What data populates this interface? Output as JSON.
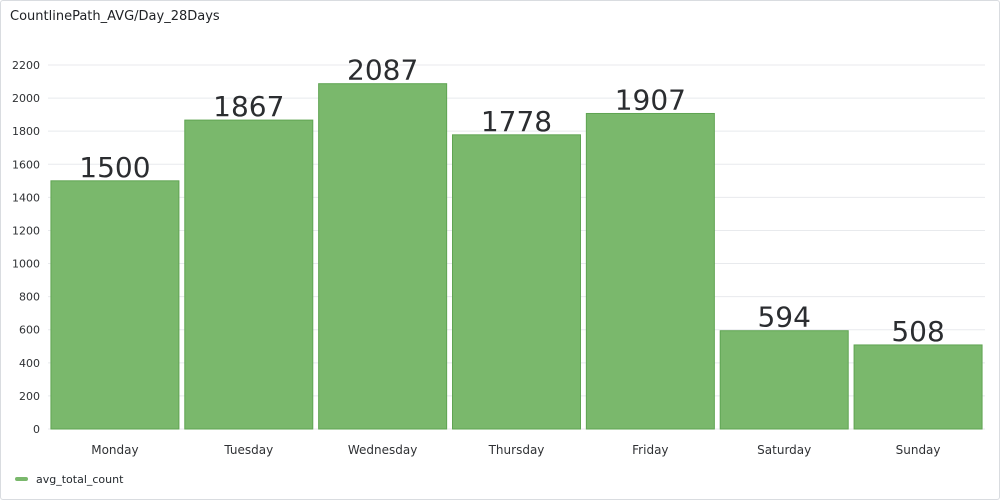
{
  "panel": {
    "title": "CountlinePath_AVG/Day_28Days"
  },
  "colors": {
    "bar_fill": "#7ab86c",
    "bar_stroke": "#5fa452",
    "grid": "#e8eaed",
    "axis_text": "#2f3134",
    "value_label": "#2b2d30"
  },
  "chart_data": {
    "type": "bar",
    "title": "CountlinePath_AVG/Day_28Days",
    "xlabel": "",
    "ylabel": "",
    "categories": [
      "Monday",
      "Tuesday",
      "Wednesday",
      "Thursday",
      "Friday",
      "Saturday",
      "Sunday"
    ],
    "series": [
      {
        "name": "avg_total_count",
        "values": [
          1500,
          1867,
          2087,
          1778,
          1907,
          594,
          508
        ]
      }
    ],
    "ylim": [
      0,
      2200
    ],
    "yticks": [
      0,
      200,
      400,
      600,
      800,
      1000,
      1200,
      1400,
      1600,
      1800,
      2000,
      2200
    ],
    "grid": true,
    "legend_position": "bottom-left",
    "show_value_labels": true
  }
}
